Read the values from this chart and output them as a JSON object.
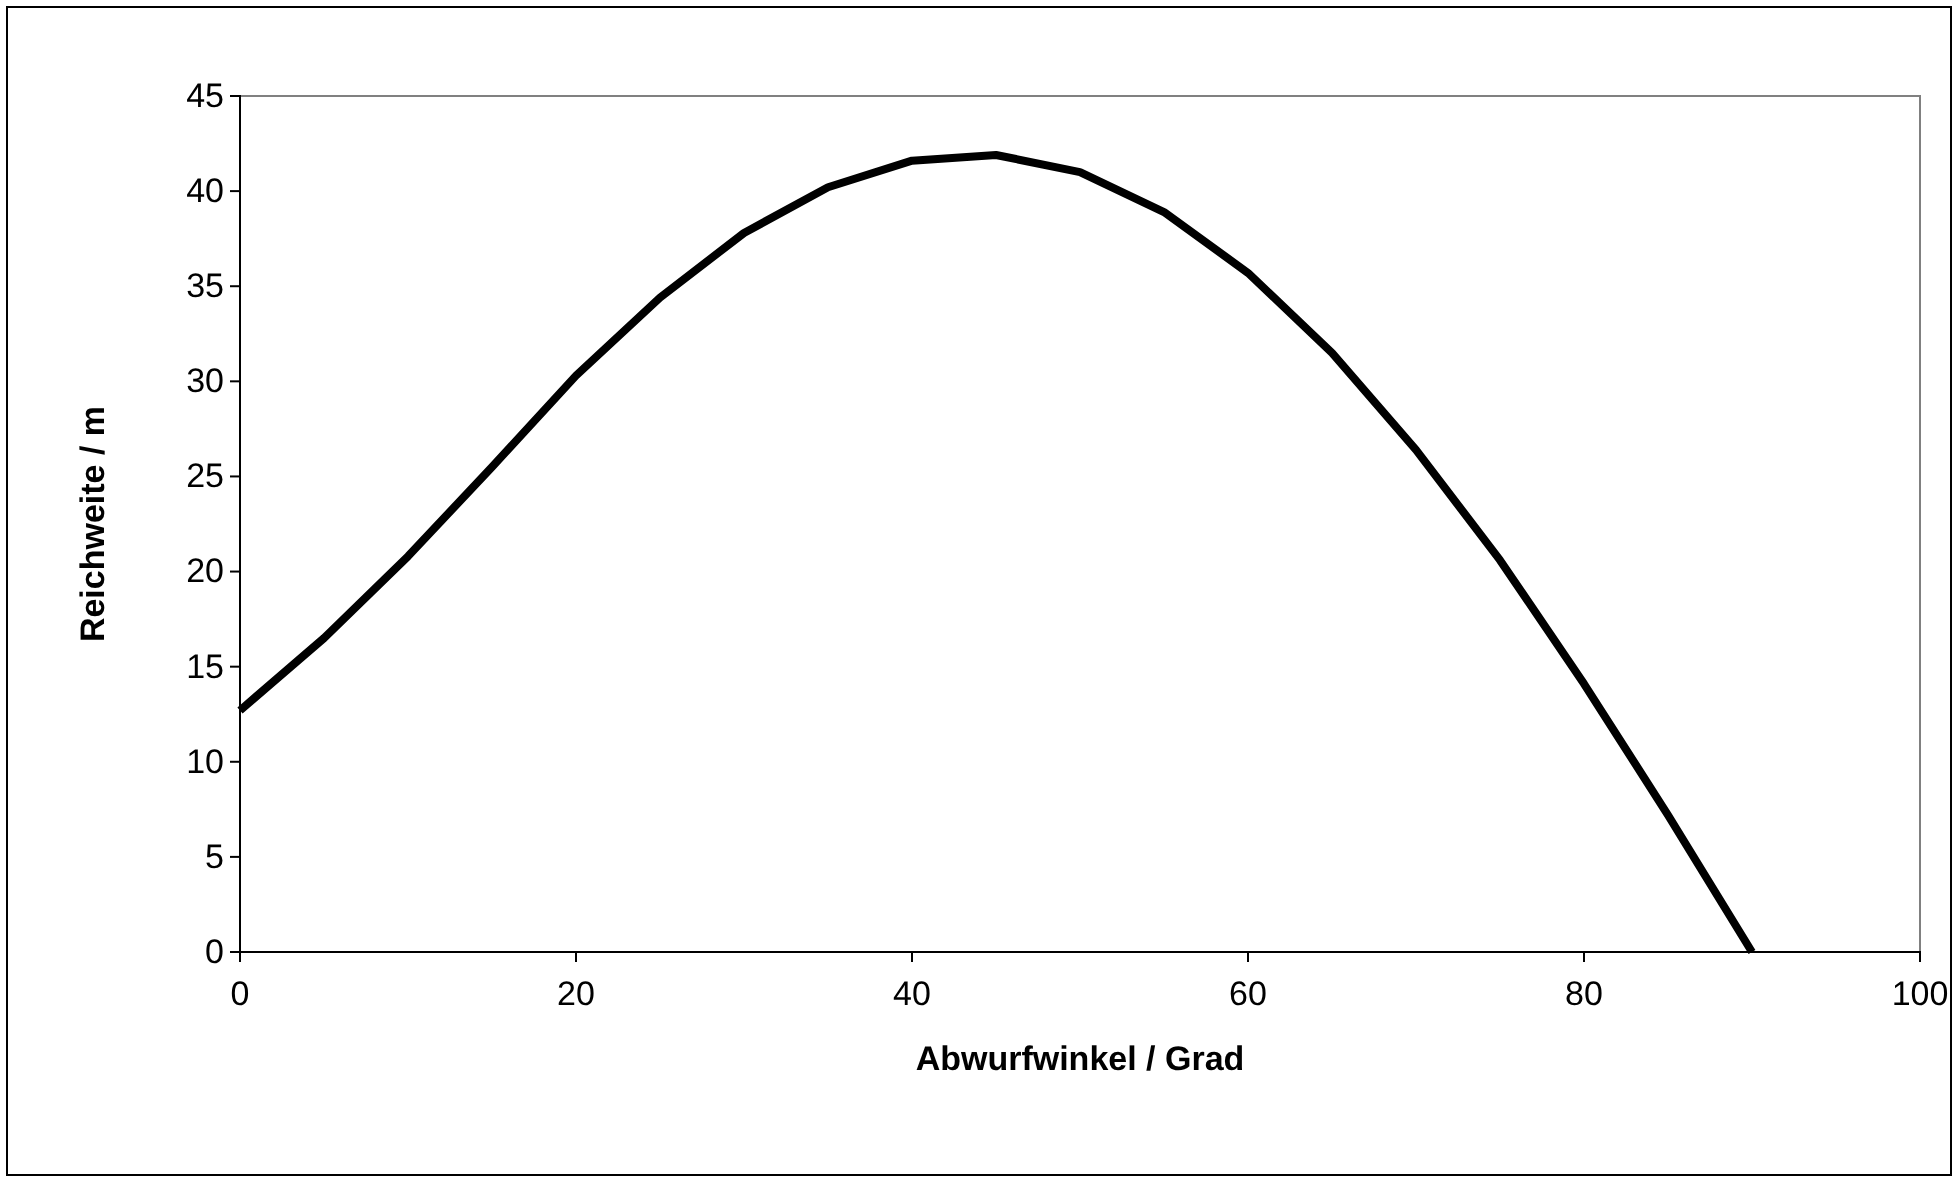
{
  "chart_data": {
    "type": "line",
    "xlabel": "Abwurfwinkel / Grad",
    "ylabel": "Reichweite / m",
    "x": [
      0,
      5,
      10,
      15,
      20,
      25,
      30,
      35,
      40,
      45,
      50,
      55,
      60,
      65,
      70,
      75,
      80,
      85,
      90
    ],
    "series": [
      {
        "color": "#000000",
        "values": [
          12.7,
          16.5,
          20.8,
          25.5,
          30.3,
          34.4,
          37.8,
          40.2,
          41.6,
          41.9,
          41.0,
          38.9,
          35.7,
          31.5,
          26.4,
          20.6,
          14.1,
          7.2,
          0
        ]
      }
    ],
    "xlim": [
      0,
      100
    ],
    "xticks": [
      0,
      20,
      40,
      60,
      80,
      100
    ],
    "ylim": [
      0,
      45
    ],
    "yticks": [
      0,
      5,
      10,
      15,
      20,
      25,
      30,
      35,
      40,
      45
    ],
    "grid": false,
    "marker": "none",
    "line_style": "solid"
  }
}
